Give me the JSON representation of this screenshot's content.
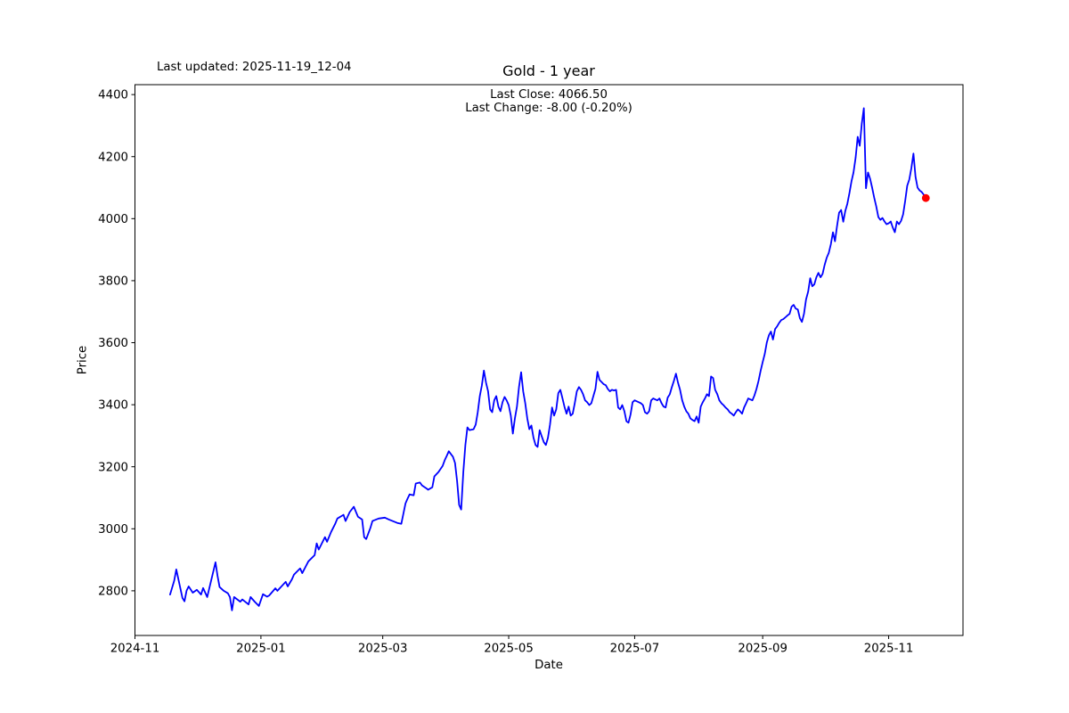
{
  "header": {
    "last_updated": "Last updated: 2025-11-19_12-04",
    "title": "Gold - 1 year",
    "last_close": "Last Close: 4066.50",
    "last_change": "Last Change: -8.00 (-0.20%)"
  },
  "chart_data": {
    "type": "line",
    "title": "Gold - 1 year",
    "xlabel": "Date",
    "ylabel": "Price",
    "legend": "none",
    "grid": false,
    "line_color": "#0000ff",
    "last_point_color": "#ff0000",
    "last_close": 4066.5,
    "last_change": -8.0,
    "last_change_pct": -0.2,
    "last_updated": "2025-11-19_12-04",
    "xlim": [
      "2024-11-01",
      "2025-12-07"
    ],
    "ylim": [
      2656,
      4432
    ],
    "x_ticks": [
      {
        "date": "2024-11-01",
        "label": "2024-11"
      },
      {
        "date": "2025-01-01",
        "label": "2025-01"
      },
      {
        "date": "2025-03-01",
        "label": "2025-03"
      },
      {
        "date": "2025-05-01",
        "label": "2025-05"
      },
      {
        "date": "2025-07-01",
        "label": "2025-07"
      },
      {
        "date": "2025-09-01",
        "label": "2025-09"
      },
      {
        "date": "2025-11-01",
        "label": "2025-11"
      }
    ],
    "y_ticks": [
      2800,
      3000,
      3200,
      3400,
      3600,
      3800,
      4000,
      4200,
      4400
    ],
    "series": {
      "name": "Gold",
      "dates": [
        "2024-11-18",
        "2024-11-20",
        "2024-11-21",
        "2024-11-24",
        "2024-11-25",
        "2024-11-26",
        "2024-11-27",
        "2024-11-29",
        "2024-12-01",
        "2024-12-03",
        "2024-12-04",
        "2024-12-06",
        "2024-12-10",
        "2024-12-11",
        "2024-12-12",
        "2024-12-14",
        "2024-12-16",
        "2024-12-17",
        "2024-12-18",
        "2024-12-19",
        "2024-12-22",
        "2024-12-23",
        "2024-12-26",
        "2024-12-27",
        "2024-12-29",
        "2024-12-31",
        "2025-01-02",
        "2025-01-04",
        "2025-01-05",
        "2025-01-08",
        "2025-01-09",
        "2025-01-13",
        "2025-01-14",
        "2025-01-16",
        "2025-01-17",
        "2025-01-20",
        "2025-01-21",
        "2025-01-24",
        "2025-01-27",
        "2025-01-28",
        "2025-01-29",
        "2025-02-01",
        "2025-02-02",
        "2025-02-04",
        "2025-02-06",
        "2025-02-07",
        "2025-02-10",
        "2025-02-11",
        "2025-02-13",
        "2025-02-15",
        "2025-02-17",
        "2025-02-19",
        "2025-02-20",
        "2025-02-21",
        "2025-02-23",
        "2025-02-24",
        "2025-02-27",
        "2025-03-02",
        "2025-03-04",
        "2025-03-08",
        "2025-03-10",
        "2025-03-12",
        "2025-03-13",
        "2025-03-14",
        "2025-03-16",
        "2025-03-17",
        "2025-03-19",
        "2025-03-20",
        "2025-03-22",
        "2025-03-23",
        "2025-03-25",
        "2025-03-26",
        "2025-03-28",
        "2025-03-30",
        "2025-03-31",
        "2025-04-01",
        "2025-04-02",
        "2025-04-04",
        "2025-04-05",
        "2025-04-06",
        "2025-04-07",
        "2025-04-08",
        "2025-04-09",
        "2025-04-10",
        "2025-04-11",
        "2025-04-12",
        "2025-04-14",
        "2025-04-15",
        "2025-04-16",
        "2025-04-17",
        "2025-04-18",
        "2025-04-19",
        "2025-04-20",
        "2025-04-21",
        "2025-04-22",
        "2025-04-23",
        "2025-04-24",
        "2025-04-25",
        "2025-04-26",
        "2025-04-27",
        "2025-04-28",
        "2025-04-29",
        "2025-04-30",
        "2025-05-01",
        "2025-05-02",
        "2025-05-03",
        "2025-05-04",
        "2025-05-05",
        "2025-05-06",
        "2025-05-07",
        "2025-05-08",
        "2025-05-09",
        "2025-05-10",
        "2025-05-11",
        "2025-05-12",
        "2025-05-13",
        "2025-05-14",
        "2025-05-15",
        "2025-05-16",
        "2025-05-17",
        "2025-05-18",
        "2025-05-19",
        "2025-05-20",
        "2025-05-21",
        "2025-05-22",
        "2025-05-23",
        "2025-05-24",
        "2025-05-25",
        "2025-05-26",
        "2025-05-27",
        "2025-05-28",
        "2025-05-29",
        "2025-05-30",
        "2025-05-31",
        "2025-06-01",
        "2025-06-02",
        "2025-06-03",
        "2025-06-04",
        "2025-06-05",
        "2025-06-06",
        "2025-06-07",
        "2025-06-08",
        "2025-06-09",
        "2025-06-10",
        "2025-06-11",
        "2025-06-12",
        "2025-06-13",
        "2025-06-14",
        "2025-06-16",
        "2025-06-17",
        "2025-06-18",
        "2025-06-19",
        "2025-06-20",
        "2025-06-21",
        "2025-06-22",
        "2025-06-23",
        "2025-06-24",
        "2025-06-25",
        "2025-06-26",
        "2025-06-27",
        "2025-06-28",
        "2025-06-29",
        "2025-06-30",
        "2025-07-01",
        "2025-07-03",
        "2025-07-04",
        "2025-07-05",
        "2025-07-06",
        "2025-07-07",
        "2025-07-08",
        "2025-07-09",
        "2025-07-10",
        "2025-07-11",
        "2025-07-12",
        "2025-07-13",
        "2025-07-14",
        "2025-07-15",
        "2025-07-16",
        "2025-07-17",
        "2025-07-18",
        "2025-07-19",
        "2025-07-20",
        "2025-07-21",
        "2025-07-22",
        "2025-07-23",
        "2025-07-24",
        "2025-07-25",
        "2025-07-26",
        "2025-07-27",
        "2025-07-28",
        "2025-07-29",
        "2025-07-30",
        "2025-07-31",
        "2025-08-01",
        "2025-08-02",
        "2025-08-03",
        "2025-08-04",
        "2025-08-05",
        "2025-08-06",
        "2025-08-07",
        "2025-08-08",
        "2025-08-09",
        "2025-08-10",
        "2025-08-11",
        "2025-08-12",
        "2025-08-13",
        "2025-08-14",
        "2025-08-15",
        "2025-08-16",
        "2025-08-17",
        "2025-08-18",
        "2025-08-19",
        "2025-08-20",
        "2025-08-21",
        "2025-08-22",
        "2025-08-23",
        "2025-08-24",
        "2025-08-25",
        "2025-08-26",
        "2025-08-27",
        "2025-08-28",
        "2025-08-29",
        "2025-08-30",
        "2025-08-31",
        "2025-09-01",
        "2025-09-02",
        "2025-09-03",
        "2025-09-04",
        "2025-09-05",
        "2025-09-06",
        "2025-09-07",
        "2025-09-08",
        "2025-09-09",
        "2025-09-10",
        "2025-09-11",
        "2025-09-12",
        "2025-09-13",
        "2025-09-14",
        "2025-09-15",
        "2025-09-16",
        "2025-09-17",
        "2025-09-18",
        "2025-09-19",
        "2025-09-20",
        "2025-09-21",
        "2025-09-22",
        "2025-09-23",
        "2025-09-24",
        "2025-09-25",
        "2025-09-26",
        "2025-09-27",
        "2025-09-28",
        "2025-09-29",
        "2025-09-30",
        "2025-10-01",
        "2025-10-02",
        "2025-10-03",
        "2025-10-04",
        "2025-10-05",
        "2025-10-06",
        "2025-10-07",
        "2025-10-08",
        "2025-10-09",
        "2025-10-10",
        "2025-10-11",
        "2025-10-12",
        "2025-10-13",
        "2025-10-14",
        "2025-10-15",
        "2025-10-16",
        "2025-10-17",
        "2025-10-18",
        "2025-10-19",
        "2025-10-20",
        "2025-10-21",
        "2025-10-22",
        "2025-10-23",
        "2025-10-24",
        "2025-10-25",
        "2025-10-26",
        "2025-10-27",
        "2025-10-28",
        "2025-10-29",
        "2025-10-30",
        "2025-10-31",
        "2025-11-01",
        "2025-11-02",
        "2025-11-03",
        "2025-11-04",
        "2025-11-05",
        "2025-11-06",
        "2025-11-07",
        "2025-11-08",
        "2025-11-09",
        "2025-11-10",
        "2025-11-11",
        "2025-11-12",
        "2025-11-13",
        "2025-11-14",
        "2025-11-15",
        "2025-11-16",
        "2025-11-17",
        "2025-11-18",
        "2025-11-19"
      ],
      "prices": [
        2788,
        2832,
        2869,
        2777,
        2766,
        2800,
        2814,
        2794,
        2803,
        2788,
        2809,
        2780,
        2892,
        2848,
        2812,
        2800,
        2792,
        2780,
        2737,
        2780,
        2765,
        2772,
        2756,
        2780,
        2765,
        2751,
        2789,
        2781,
        2785,
        2808,
        2800,
        2829,
        2814,
        2837,
        2852,
        2872,
        2857,
        2895,
        2915,
        2953,
        2933,
        2973,
        2958,
        2990,
        3016,
        3033,
        3045,
        3025,
        3054,
        3071,
        3039,
        3030,
        2973,
        2967,
        3002,
        3025,
        3033,
        3036,
        3030,
        3019,
        3016,
        3082,
        3097,
        3111,
        3108,
        3146,
        3149,
        3140,
        3131,
        3126,
        3134,
        3169,
        3183,
        3203,
        3221,
        3235,
        3250,
        3232,
        3212,
        3154,
        3077,
        3062,
        3183,
        3270,
        3327,
        3318,
        3321,
        3336,
        3376,
        3428,
        3462,
        3510,
        3471,
        3443,
        3385,
        3376,
        3414,
        3428,
        3394,
        3379,
        3408,
        3425,
        3414,
        3399,
        3365,
        3307,
        3356,
        3394,
        3457,
        3505,
        3443,
        3405,
        3356,
        3321,
        3333,
        3293,
        3270,
        3264,
        3318,
        3298,
        3279,
        3270,
        3293,
        3336,
        3391,
        3365,
        3385,
        3437,
        3448,
        3422,
        3394,
        3371,
        3394,
        3365,
        3371,
        3405,
        3443,
        3457,
        3448,
        3434,
        3414,
        3408,
        3399,
        3405,
        3428,
        3451,
        3506,
        3480,
        3466,
        3463,
        3451,
        3443,
        3448,
        3446,
        3448,
        3391,
        3385,
        3399,
        3379,
        3347,
        3342,
        3368,
        3408,
        3414,
        3408,
        3405,
        3399,
        3376,
        3371,
        3379,
        3414,
        3420,
        3417,
        3414,
        3420,
        3405,
        3394,
        3391,
        3423,
        3434,
        3457,
        3477,
        3500,
        3471,
        3448,
        3414,
        3394,
        3379,
        3371,
        3356,
        3351,
        3347,
        3362,
        3342,
        3394,
        3408,
        3420,
        3434,
        3428,
        3491,
        3486,
        3448,
        3434,
        3414,
        3405,
        3399,
        3391,
        3385,
        3376,
        3371,
        3365,
        3376,
        3385,
        3379,
        3371,
        3391,
        3405,
        3420,
        3417,
        3414,
        3430,
        3451,
        3477,
        3509,
        3538,
        3564,
        3601,
        3624,
        3636,
        3610,
        3644,
        3653,
        3664,
        3673,
        3676,
        3682,
        3688,
        3693,
        3716,
        3722,
        3710,
        3707,
        3679,
        3667,
        3693,
        3739,
        3765,
        3808,
        3782,
        3788,
        3811,
        3825,
        3811,
        3822,
        3851,
        3874,
        3889,
        3918,
        3956,
        3927,
        3976,
        4019,
        4028,
        3990,
        4025,
        4048,
        4082,
        4120,
        4149,
        4197,
        4264,
        4235,
        4306,
        4356,
        4098,
        4149,
        4129,
        4100,
        4068,
        4040,
        4005,
        3996,
        4002,
        3991,
        3982,
        3985,
        3991,
        3971,
        3956,
        3991,
        3982,
        3993,
        4014,
        4057,
        4106,
        4126,
        4164,
        4210,
        4135,
        4100,
        4091,
        4086,
        4077,
        4066.5
      ]
    }
  }
}
